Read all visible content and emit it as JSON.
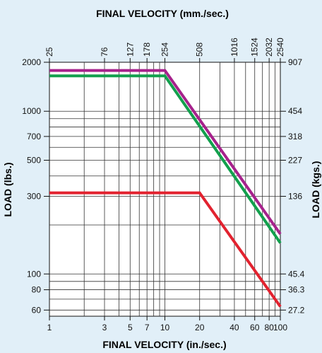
{
  "chart_data": {
    "type": "line",
    "title_top": "FINAL VELOCITY (mm./sec.)",
    "xlabel": "FINAL VELOCITY (in./sec.)",
    "ylabel_left": "LOAD (lbs.)",
    "ylabel_right": "LOAD (kgs.)",
    "x_scale": "log",
    "y_scale": "log",
    "xlim": [
      1,
      100
    ],
    "ylim": [
      55,
      2000
    ],
    "x_ticks": [
      1,
      3,
      5,
      7,
      10,
      20,
      40,
      60,
      80,
      100
    ],
    "x_tick_labels": [
      "1",
      "3",
      "5",
      "7",
      "10",
      "20",
      "40",
      "60",
      "80",
      "100"
    ],
    "x_top_ticks": [
      1,
      3,
      5,
      7,
      10,
      20,
      40,
      60,
      80,
      100
    ],
    "x_top_tick_labels": [
      "25",
      "76",
      "127",
      "178",
      "254",
      "508",
      "1016",
      "1524",
      "2032",
      "2540"
    ],
    "y_ticks": [
      60,
      80,
      100,
      300,
      500,
      700,
      1000,
      2000
    ],
    "y_tick_labels": [
      "60",
      "80",
      "100",
      "300",
      "500",
      "700",
      "1000",
      "2000"
    ],
    "y_right_ticks": [
      60,
      80,
      100,
      300,
      500,
      700,
      1000,
      2000
    ],
    "y_right_tick_labels": [
      "27.2",
      "36.3",
      "45.4",
      "136",
      "227",
      "318",
      "454",
      "907"
    ],
    "grid": true,
    "series": [
      {
        "color": "#a6228c",
        "x": [
          1,
          10,
          100
        ],
        "y": [
          1780,
          1780,
          176
        ]
      },
      {
        "color": "#12a04d",
        "x": [
          1,
          10,
          100
        ],
        "y": [
          1650,
          1650,
          155
        ]
      },
      {
        "color": "#e2222f",
        "x": [
          1,
          20,
          100
        ],
        "y": [
          315,
          315,
          63
        ]
      }
    ]
  }
}
